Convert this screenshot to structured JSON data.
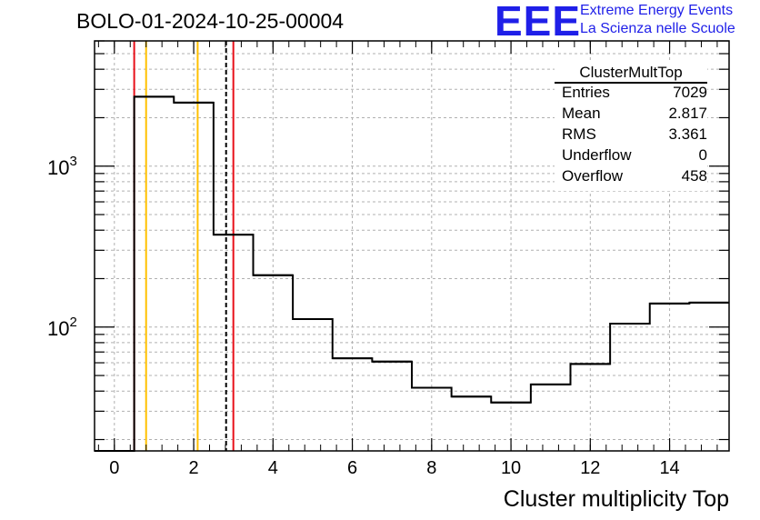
{
  "title": "BOLO-01-2024-10-25-00004",
  "logo": {
    "mark": "EEE",
    "line1": "Extreme Energy Events",
    "line2": "La Scienza nelle Scuole",
    "color": "#1f1fe8"
  },
  "stats": {
    "name": "ClusterMultTop",
    "rows": [
      {
        "label": "Entries",
        "value": "7029"
      },
      {
        "label": "Mean",
        "value": "2.817"
      },
      {
        "label": "RMS",
        "value": "3.361"
      },
      {
        "label": "Underflow",
        "value": "0"
      },
      {
        "label": "Overflow",
        "value": "458"
      }
    ]
  },
  "chart_data": {
    "type": "histogram",
    "title": "BOLO-01-2024-10-25-00004",
    "xlabel": "Cluster multiplicity Top",
    "ylabel": "",
    "xlim": [
      -0.5,
      15.5
    ],
    "ylim": [
      17,
      6000
    ],
    "yscale": "log",
    "grid": true,
    "x_ticks": [
      0,
      2,
      4,
      6,
      8,
      10,
      12,
      14
    ],
    "y_tick_labels": [
      "10^2",
      "10^3"
    ],
    "bins": {
      "edges": [
        -0.5,
        0.5,
        1.5,
        2.5,
        3.5,
        4.5,
        5.5,
        6.5,
        7.5,
        8.5,
        9.5,
        10.5,
        11.5,
        12.5,
        13.5,
        14.5,
        15.5
      ],
      "counts": [
        0,
        2700,
        2480,
        375,
        210,
        112,
        64,
        61,
        42,
        37,
        34,
        44,
        59,
        105,
        140,
        142
      ]
    },
    "vertical_lines": [
      {
        "x": 0.5,
        "color": "#e8101a",
        "style": "solid"
      },
      {
        "x": 0.8,
        "color": "#ffc000",
        "style": "solid"
      },
      {
        "x": 2.1,
        "color": "#ffc000",
        "style": "solid"
      },
      {
        "x": 2.817,
        "color": "#000000",
        "style": "dashed"
      },
      {
        "x": 3.0,
        "color": "#e8101a",
        "style": "solid"
      }
    ],
    "colors": {
      "histogram": "#000000",
      "red": "#e8101a",
      "orange": "#ffc000",
      "grid": "#b0b0b0"
    }
  }
}
